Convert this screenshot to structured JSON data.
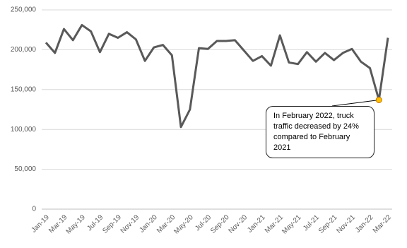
{
  "chart_data": {
    "type": "line",
    "categories": [
      "Jan-19",
      null,
      "Mar-19",
      null,
      "May-19",
      null,
      "Jul-19",
      null,
      "Sep-19",
      null,
      "Nov-19",
      null,
      "Jan-20",
      null,
      "Mar-20",
      null,
      "May-20",
      null,
      "Jul-20",
      null,
      "Sep-20",
      null,
      "Nov-20",
      null,
      "Jan-21",
      null,
      "Mar-21",
      null,
      "May-21",
      null,
      "Jul-21",
      null,
      "Sep-21",
      null,
      "Nov-21",
      null,
      "Jan-22",
      null,
      "Mar-22"
    ],
    "values": [
      209000,
      196000,
      226000,
      212000,
      231000,
      223000,
      197000,
      220000,
      215000,
      222000,
      213000,
      186000,
      203000,
      206000,
      193000,
      103000,
      125000,
      202000,
      201000,
      211000,
      211000,
      212000,
      199000,
      186000,
      192000,
      180000,
      218000,
      184000,
      182000,
      197000,
      185000,
      196000,
      187000,
      196000,
      201000,
      185000,
      177000,
      137000,
      215000
    ],
    "color": "#595959",
    "ylim": [
      0,
      250000
    ],
    "yticks": [
      0,
      {
        "value": 50000,
        "label": "50,000"
      },
      {
        "value": 100000,
        "label": "100,000"
      },
      {
        "value": 150000,
        "label": "150,000"
      },
      {
        "value": 200000,
        "label": "200,000"
      },
      {
        "value": 250000,
        "label": "250,000"
      }
    ],
    "grid": true,
    "highlight_index": 37,
    "highlight_color": "#ffc000",
    "annotation": "In February 2022, truck traffic decreased by 24% compared to February 2021"
  }
}
